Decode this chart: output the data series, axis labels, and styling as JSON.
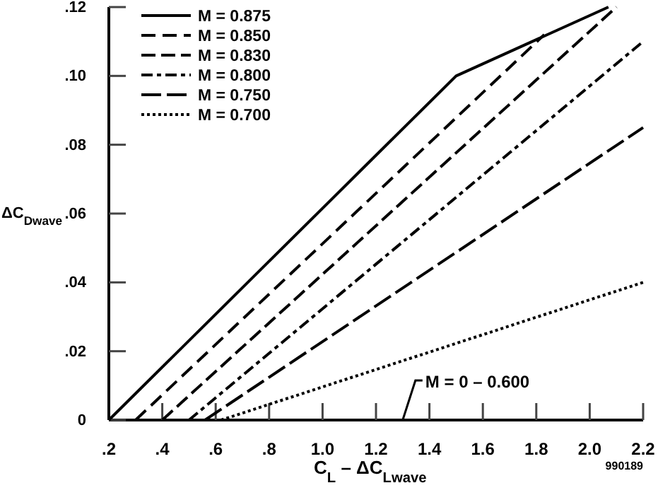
{
  "chart_data": {
    "type": "line",
    "xlabel": "C$_{L}$ – ΔC$_{Lwave}$",
    "ylabel": "ΔC$_{Dwave}$",
    "xlim": [
      0.2,
      2.2
    ],
    "ylim": [
      0,
      0.12
    ],
    "xticks": [
      {
        "value": 0.2,
        "label": ".2"
      },
      {
        "value": 0.4,
        "label": ".4"
      },
      {
        "value": 0.6,
        "label": ".6"
      },
      {
        "value": 0.8,
        "label": ".8"
      },
      {
        "value": 1.0,
        "label": "1.0"
      },
      {
        "value": 1.2,
        "label": "1.2"
      },
      {
        "value": 1.4,
        "label": "1.4"
      },
      {
        "value": 1.6,
        "label": "1.6"
      },
      {
        "value": 1.8,
        "label": "1.8"
      },
      {
        "value": 2.0,
        "label": "2.0"
      },
      {
        "value": 2.2,
        "label": "2.2"
      }
    ],
    "yticks": [
      0,
      {
        "value": 0.02,
        "label": ".02"
      },
      {
        "value": 0.04,
        "label": ".04"
      },
      {
        "value": 0.06,
        "label": ".06"
      },
      {
        "value": 0.08,
        "label": ".08"
      },
      {
        "value": 0.1,
        "label": ".10"
      },
      {
        "value": 0.12,
        "label": ".12"
      }
    ],
    "grid": false,
    "legend": "top left",
    "marker": "none",
    "series": [
      {
        "name": "M = 0.875",
        "color": "#000000",
        "line_style": "solid",
        "x": [
          0.2,
          1.5,
          2.07
        ],
        "values": [
          0,
          0.1,
          0.12
        ]
      },
      {
        "name": "M = 0.850",
        "color": "#000000",
        "line_style": "dashed",
        "x": [
          0.3,
          1.83
        ],
        "values": [
          0,
          0.112
        ]
      },
      {
        "name": "M = 0.830",
        "color": "#000000",
        "line_style": "dashed",
        "x": [
          0.4,
          2.1
        ],
        "values": [
          0,
          0.12
        ]
      },
      {
        "name": "M = 0.800",
        "color": "#000000",
        "line_style": "dashed",
        "x": [
          0.5,
          2.2
        ],
        "values": [
          0,
          0.11
        ]
      },
      {
        "name": "M = 0.750",
        "color": "#000000",
        "line_style": "dashed",
        "x": [
          0.56,
          2.2
        ],
        "values": [
          0,
          0.085
        ]
      },
      {
        "name": "M = 0.700",
        "color": "#000000",
        "line_style": "dotted",
        "x": [
          0.62,
          2.2
        ],
        "values": [
          0,
          0.04
        ]
      }
    ],
    "annotations": [
      "M = 0 – 0.600",
      "990189"
    ]
  }
}
